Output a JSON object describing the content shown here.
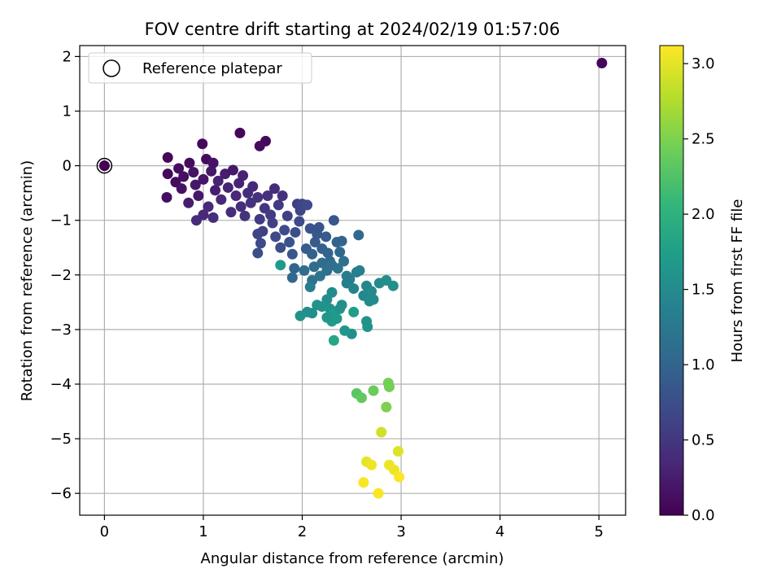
{
  "chart_data": {
    "type": "scatter",
    "title": "FOV centre drift starting at 2024/02/19 01:57:06",
    "xlabel": "Angular distance from reference (arcmin)",
    "ylabel": "Rotation from reference (arcmin)",
    "xlim": [
      -0.25,
      5.27
    ],
    "ylim": [
      -6.4,
      2.2
    ],
    "xticks": [
      0,
      1,
      2,
      3,
      4,
      5
    ],
    "yticks": [
      2,
      1,
      0,
      -1,
      -2,
      -3,
      -4,
      -5,
      -6
    ],
    "grid": true,
    "legend": {
      "location": "upper-left",
      "entries": [
        "Reference platepar"
      ]
    },
    "reference_point": {
      "x": 0,
      "y": 0
    },
    "colorbar": {
      "label": "Hours from first FF file",
      "colormap": "viridis",
      "range": [
        0,
        3.12
      ],
      "ticks": [
        "0.0",
        "0.5",
        "1.0",
        "1.5",
        "2.0",
        "2.5",
        "3.0"
      ]
    },
    "points": [
      {
        "x": 0,
        "y": 0,
        "c": 0.0
      },
      {
        "x": 5.03,
        "y": 1.88,
        "c": 0.05
      },
      {
        "x": 1.37,
        "y": 0.6,
        "c": 0.05
      },
      {
        "x": 1.63,
        "y": 0.45,
        "c": 0.08
      },
      {
        "x": 1.57,
        "y": 0.36,
        "c": 0.1
      },
      {
        "x": 0.99,
        "y": 0.4,
        "c": 0.06
      },
      {
        "x": 0.64,
        "y": 0.15,
        "c": 0.05
      },
      {
        "x": 0.64,
        "y": -0.15,
        "c": 0.08
      },
      {
        "x": 0.63,
        "y": -0.58,
        "c": 0.12
      },
      {
        "x": 0.72,
        "y": -0.3,
        "c": 0.1
      },
      {
        "x": 0.75,
        "y": -0.05,
        "c": 0.12
      },
      {
        "x": 0.8,
        "y": -0.2,
        "c": 0.12
      },
      {
        "x": 0.78,
        "y": -0.42,
        "c": 0.15
      },
      {
        "x": 0.86,
        "y": 0.05,
        "c": 0.1
      },
      {
        "x": 0.9,
        "y": -0.12,
        "c": 0.15
      },
      {
        "x": 0.92,
        "y": -0.35,
        "c": 0.2
      },
      {
        "x": 0.95,
        "y": -0.55,
        "c": 0.2
      },
      {
        "x": 0.85,
        "y": -0.68,
        "c": 0.25
      },
      {
        "x": 1.0,
        "y": -0.25,
        "c": 0.18
      },
      {
        "x": 1.03,
        "y": 0.12,
        "c": 0.1
      },
      {
        "x": 1.08,
        "y": -0.1,
        "c": 0.2
      },
      {
        "x": 1.1,
        "y": 0.05,
        "c": 0.15
      },
      {
        "x": 1.12,
        "y": -0.45,
        "c": 0.25
      },
      {
        "x": 1.15,
        "y": -0.28,
        "c": 0.3
      },
      {
        "x": 1.05,
        "y": -0.75,
        "c": 0.35
      },
      {
        "x": 0.93,
        "y": -1.0,
        "c": 0.4
      },
      {
        "x": 1.0,
        "y": -0.9,
        "c": 0.35
      },
      {
        "x": 1.1,
        "y": -0.95,
        "c": 0.4
      },
      {
        "x": 1.18,
        "y": -0.62,
        "c": 0.35
      },
      {
        "x": 1.22,
        "y": -0.15,
        "c": 0.25
      },
      {
        "x": 1.25,
        "y": -0.4,
        "c": 0.3
      },
      {
        "x": 1.28,
        "y": -0.85,
        "c": 0.4
      },
      {
        "x": 1.3,
        "y": -0.08,
        "c": 0.2
      },
      {
        "x": 1.33,
        "y": -0.55,
        "c": 0.35
      },
      {
        "x": 1.36,
        "y": -0.32,
        "c": 0.3
      },
      {
        "x": 1.38,
        "y": -0.75,
        "c": 0.4
      },
      {
        "x": 1.4,
        "y": -0.18,
        "c": 0.3
      },
      {
        "x": 1.42,
        "y": -0.92,
        "c": 0.45
      },
      {
        "x": 1.45,
        "y": -0.5,
        "c": 0.4
      },
      {
        "x": 1.48,
        "y": -0.68,
        "c": 0.45
      },
      {
        "x": 1.5,
        "y": -0.38,
        "c": 0.35
      },
      {
        "x": 1.55,
        "y": -0.58,
        "c": 0.45
      },
      {
        "x": 1.57,
        "y": -0.98,
        "c": 0.55
      },
      {
        "x": 1.6,
        "y": -1.2,
        "c": 0.6
      },
      {
        "x": 1.62,
        "y": -0.78,
        "c": 0.5
      },
      {
        "x": 1.65,
        "y": -0.55,
        "c": 0.45
      },
      {
        "x": 1.68,
        "y": -0.9,
        "c": 0.55
      },
      {
        "x": 1.7,
        "y": -1.05,
        "c": 0.6
      },
      {
        "x": 1.72,
        "y": -0.42,
        "c": 0.4
      },
      {
        "x": 1.55,
        "y": -1.25,
        "c": 0.65
      },
      {
        "x": 1.58,
        "y": -1.42,
        "c": 0.7
      },
      {
        "x": 1.55,
        "y": -1.6,
        "c": 0.75
      },
      {
        "x": 1.73,
        "y": -1.3,
        "c": 0.7
      },
      {
        "x": 1.76,
        "y": -0.72,
        "c": 0.55
      },
      {
        "x": 1.78,
        "y": -1.5,
        "c": 0.75
      },
      {
        "x": 1.8,
        "y": -0.55,
        "c": 0.45
      },
      {
        "x": 1.82,
        "y": -1.18,
        "c": 0.7
      },
      {
        "x": 1.85,
        "y": -0.92,
        "c": 0.6
      },
      {
        "x": 1.87,
        "y": -1.4,
        "c": 0.8
      },
      {
        "x": 1.9,
        "y": -1.62,
        "c": 0.85
      },
      {
        "x": 1.93,
        "y": -1.22,
        "c": 0.75
      },
      {
        "x": 1.95,
        "y": -0.7,
        "c": 0.6
      },
      {
        "x": 1.97,
        "y": -1.02,
        "c": 0.7
      },
      {
        "x": 1.98,
        "y": -0.82,
        "c": 0.65
      },
      {
        "x": 2.0,
        "y": -0.7,
        "c": 0.65
      },
      {
        "x": 2.05,
        "y": -0.72,
        "c": 0.7
      },
      {
        "x": 2.08,
        "y": -1.15,
        "c": 0.8
      },
      {
        "x": 2.04,
        "y": -1.52,
        "c": 0.9
      },
      {
        "x": 2.1,
        "y": -1.62,
        "c": 0.95
      },
      {
        "x": 2.13,
        "y": -1.4,
        "c": 0.9
      },
      {
        "x": 2.15,
        "y": -1.25,
        "c": 0.85
      },
      {
        "x": 2.17,
        "y": -1.13,
        "c": 0.82
      },
      {
        "x": 2.2,
        "y": -1.52,
        "c": 0.95
      },
      {
        "x": 2.24,
        "y": -1.3,
        "c": 0.9
      },
      {
        "x": 2.26,
        "y": -1.6,
        "c": 1.0
      },
      {
        "x": 2.28,
        "y": -1.75,
        "c": 1.05
      },
      {
        "x": 2.32,
        "y": -1.0,
        "c": 0.85
      },
      {
        "x": 2.35,
        "y": -1.4,
        "c": 1.0
      },
      {
        "x": 2.38,
        "y": -1.58,
        "c": 1.05
      },
      {
        "x": 2.4,
        "y": -1.38,
        "c": 1.0
      },
      {
        "x": 2.57,
        "y": -1.27,
        "c": 1.05
      },
      {
        "x": 2.42,
        "y": -1.75,
        "c": 1.15
      },
      {
        "x": 2.36,
        "y": -1.88,
        "c": 1.2
      },
      {
        "x": 2.12,
        "y": -1.85,
        "c": 1.1
      },
      {
        "x": 2.2,
        "y": -1.78,
        "c": 1.1
      },
      {
        "x": 2.18,
        "y": -2.02,
        "c": 1.2
      },
      {
        "x": 2.25,
        "y": -1.92,
        "c": 1.15
      },
      {
        "x": 2.3,
        "y": -1.82,
        "c": 1.15
      },
      {
        "x": 1.92,
        "y": -1.88,
        "c": 1.0
      },
      {
        "x": 1.9,
        "y": -2.05,
        "c": 1.05
      },
      {
        "x": 2.02,
        "y": -1.92,
        "c": 1.1
      },
      {
        "x": 2.1,
        "y": -2.1,
        "c": 1.2
      },
      {
        "x": 2.08,
        "y": -2.22,
        "c": 1.3
      },
      {
        "x": 2.48,
        "y": -2.08,
        "c": 1.35
      },
      {
        "x": 2.45,
        "y": -2.15,
        "c": 1.35
      },
      {
        "x": 2.45,
        "y": -2.02,
        "c": 1.3
      },
      {
        "x": 2.52,
        "y": -2.25,
        "c": 1.4
      },
      {
        "x": 2.55,
        "y": -1.95,
        "c": 1.35
      },
      {
        "x": 2.58,
        "y": -1.92,
        "c": 1.35
      },
      {
        "x": 2.62,
        "y": -2.38,
        "c": 1.45
      },
      {
        "x": 2.65,
        "y": -2.2,
        "c": 1.45
      },
      {
        "x": 2.7,
        "y": -2.3,
        "c": 1.5
      },
      {
        "x": 2.72,
        "y": -2.45,
        "c": 1.5
      },
      {
        "x": 2.68,
        "y": -2.48,
        "c": 1.5
      },
      {
        "x": 2.78,
        "y": -2.15,
        "c": 1.5
      },
      {
        "x": 2.85,
        "y": -2.1,
        "c": 1.55
      },
      {
        "x": 2.92,
        "y": -2.2,
        "c": 1.55
      },
      {
        "x": 2.3,
        "y": -2.32,
        "c": 1.5
      },
      {
        "x": 2.25,
        "y": -2.45,
        "c": 1.55
      },
      {
        "x": 2.2,
        "y": -2.58,
        "c": 1.6
      },
      {
        "x": 2.15,
        "y": -2.55,
        "c": 1.6
      },
      {
        "x": 2.1,
        "y": -2.7,
        "c": 1.55
      },
      {
        "x": 2.05,
        "y": -2.68,
        "c": 1.55
      },
      {
        "x": 1.98,
        "y": -2.75,
        "c": 1.6
      },
      {
        "x": 2.28,
        "y": -2.62,
        "c": 1.6
      },
      {
        "x": 2.32,
        "y": -2.72,
        "c": 1.7
      },
      {
        "x": 2.35,
        "y": -2.8,
        "c": 1.7
      },
      {
        "x": 2.3,
        "y": -2.85,
        "c": 1.7
      },
      {
        "x": 2.38,
        "y": -2.62,
        "c": 1.6
      },
      {
        "x": 2.25,
        "y": -2.78,
        "c": 1.65
      },
      {
        "x": 2.4,
        "y": -2.55,
        "c": 1.55
      },
      {
        "x": 2.65,
        "y": -2.85,
        "c": 1.6
      },
      {
        "x": 2.66,
        "y": -2.95,
        "c": 1.6
      },
      {
        "x": 2.5,
        "y": -3.08,
        "c": 1.55
      },
      {
        "x": 2.43,
        "y": -3.02,
        "c": 1.65
      },
      {
        "x": 2.52,
        "y": -2.68,
        "c": 1.75
      },
      {
        "x": 2.32,
        "y": -3.2,
        "c": 1.85
      },
      {
        "x": 1.78,
        "y": -1.82,
        "c": 1.7
      },
      {
        "x": 2.55,
        "y": -4.17,
        "c": 2.3
      },
      {
        "x": 2.6,
        "y": -4.25,
        "c": 2.35
      },
      {
        "x": 2.72,
        "y": -4.12,
        "c": 2.4
      },
      {
        "x": 2.87,
        "y": -3.98,
        "c": 2.45
      },
      {
        "x": 2.88,
        "y": -4.05,
        "c": 2.45
      },
      {
        "x": 2.85,
        "y": -4.42,
        "c": 2.5
      },
      {
        "x": 2.8,
        "y": -4.88,
        "c": 2.9
      },
      {
        "x": 2.97,
        "y": -5.23,
        "c": 2.95
      },
      {
        "x": 2.65,
        "y": -5.42,
        "c": 3.0
      },
      {
        "x": 2.7,
        "y": -5.48,
        "c": 3.05
      },
      {
        "x": 2.88,
        "y": -5.48,
        "c": 3.05
      },
      {
        "x": 2.93,
        "y": -5.57,
        "c": 3.05
      },
      {
        "x": 2.98,
        "y": -5.7,
        "c": 3.1
      },
      {
        "x": 2.62,
        "y": -5.8,
        "c": 3.1
      },
      {
        "x": 2.77,
        "y": -6.0,
        "c": 3.1
      }
    ]
  },
  "colors": {
    "grid": "#b0b0b0",
    "axes": "#000000",
    "viridis_stops": [
      "#440154",
      "#482878",
      "#3e4989",
      "#31688e",
      "#26828e",
      "#1f9e89",
      "#35b779",
      "#6ece58",
      "#b5de2b",
      "#fde725"
    ]
  }
}
